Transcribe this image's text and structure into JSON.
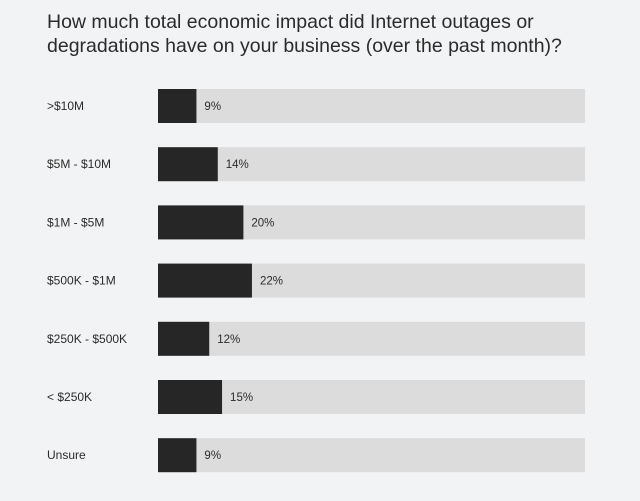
{
  "chart_data": {
    "type": "bar",
    "orientation": "horizontal",
    "title": "How much total economic impact did Internet outages or degradations have on your business (over the past month)?",
    "categories": [
      ">$10M",
      "$5M - $10M",
      "$1M - $5M",
      "$500K - $1M",
      "$250K - $500K",
      "< $250K",
      "Unsure"
    ],
    "values": [
      9,
      14,
      20,
      22,
      12,
      15,
      9
    ],
    "value_labels": [
      "9%",
      "14%",
      "20%",
      "22%",
      "12%",
      "15%",
      "9%"
    ],
    "xlim": [
      0,
      100
    ],
    "grid": false,
    "colors": {
      "bar": "#262626",
      "track": "#dcdcdd",
      "background": "#f2f3f4"
    }
  }
}
